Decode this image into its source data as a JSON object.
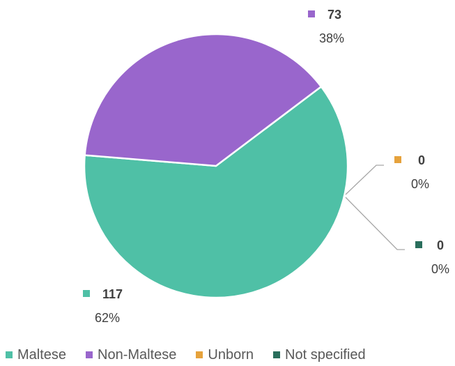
{
  "chart_data": {
    "type": "pie",
    "title": "",
    "slices": [
      {
        "label": "Maltese",
        "value": 117,
        "percent": "62%",
        "color": "#4fc0a6"
      },
      {
        "label": "Non-Maltese",
        "value": 73,
        "percent": "38%",
        "color": "#9966cc"
      },
      {
        "label": "Unborn",
        "value": 0,
        "percent": "0%",
        "color": "#e6a23c"
      },
      {
        "label": "Not specified",
        "value": 0,
        "percent": "0%",
        "color": "#2a6e5c"
      }
    ],
    "legend_position": "bottom"
  }
}
